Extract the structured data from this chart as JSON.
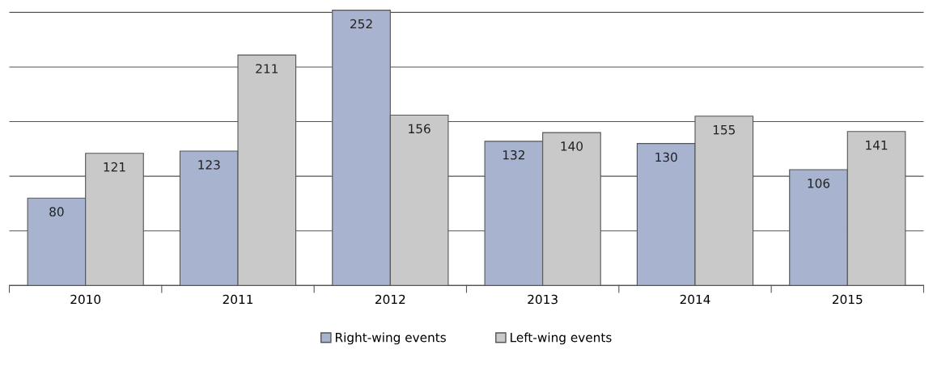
{
  "chart_data": {
    "type": "bar",
    "categories": [
      "2010",
      "2011",
      "2012",
      "2013",
      "2014",
      "2015"
    ],
    "series": [
      {
        "name": "Right-wing events",
        "color": "#a7b3cf",
        "values": [
          80,
          123,
          252,
          132,
          130,
          106
        ]
      },
      {
        "name": "Left-wing events",
        "color": "#c9c9c9",
        "values": [
          121,
          211,
          156,
          140,
          155,
          141
        ]
      }
    ],
    "ylim": [
      0,
      253
    ],
    "yticks": [
      {
        "value": 0,
        "label": null
      },
      {
        "value": 50,
        "label": null
      },
      {
        "value": 100,
        "label": null
      },
      {
        "value": 150,
        "label": null
      },
      {
        "value": 200,
        "label": null
      },
      {
        "value": 250,
        "label": null
      }
    ],
    "grid": "y",
    "legend": "bottom",
    "data_labels": true,
    "tick_labels": "x"
  }
}
